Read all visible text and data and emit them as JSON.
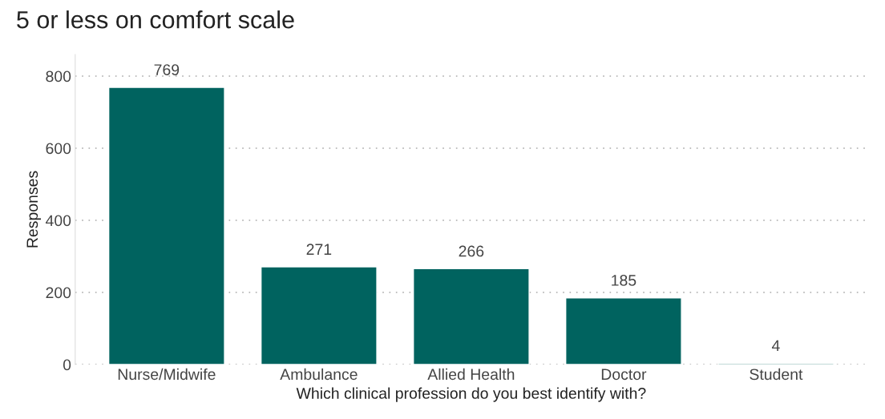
{
  "chart_data": {
    "type": "bar",
    "title": "5 or less on comfort scale",
    "xlabel": "Which clinical profession do you best identify with?",
    "ylabel": "Responses",
    "categories": [
      "Nurse/Midwife",
      "Ambulance",
      "Allied Health",
      "Doctor",
      "Student"
    ],
    "values": [
      769,
      271,
      266,
      185,
      4
    ],
    "color": "#00635f",
    "ylim": [
      0,
      860
    ],
    "yticks": [
      0,
      200,
      400,
      600,
      800
    ],
    "grid": "y",
    "data_labels": true
  }
}
